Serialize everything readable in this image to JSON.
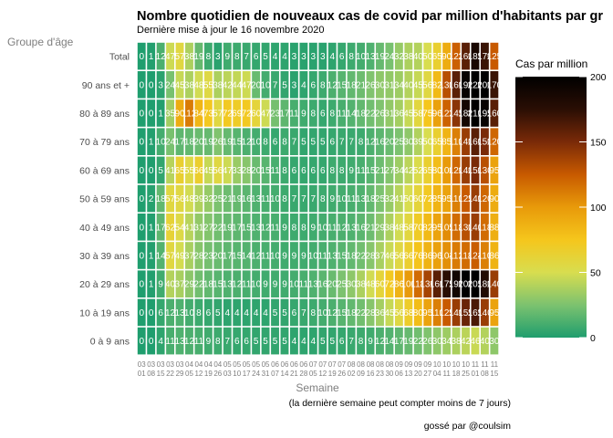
{
  "chart_data": {
    "type": "heatmap",
    "title": "Nombre quotidien de nouveaux cas de covid par million d'habitants par gr",
    "subtitle": "Dernière mise à jour le 16 novembre 2020",
    "xlabel": "Semaine",
    "ylabel": "Groupe d'âge",
    "note": "(la dernière semaine peut compter moins de 7 jours)",
    "credit": "gossé par @coulsim",
    "legend": {
      "title": "Cas par million",
      "ticks": [
        0,
        50,
        100,
        150,
        200
      ],
      "range": [
        0,
        200
      ],
      "position": "right"
    },
    "colorscale": [
      "#1f9e6e",
      "#7cc26f",
      "#d8dd4f",
      "#f5c61c",
      "#e89a0a",
      "#c85a00",
      "#7a2a08",
      "#2a0e04",
      "#000000"
    ],
    "categories_y": [
      "Total",
      "90 ans et +",
      "80 à 89 ans",
      "70 à 79 ans",
      "60 à 69 ans",
      "50 à 59 ans",
      "40 à 49 ans",
      "30 à 39 ans",
      "20 à 29 ans",
      "10 à 19 ans",
      "0 à 9 ans"
    ],
    "categories_x": [
      "03-01",
      "03-08",
      "03-15",
      "03-22",
      "03-29",
      "04-05",
      "04-12",
      "04-19",
      "04-26",
      "05-03",
      "05-10",
      "05-17",
      "05-24",
      "05-31",
      "06-07",
      "06-14",
      "06-21",
      "06-28",
      "07-05",
      "07-12",
      "07-19",
      "07-26",
      "08-02",
      "08-09",
      "08-16",
      "08-23",
      "08-30",
      "09-06",
      "09-13",
      "09-20",
      "09-27",
      "10-04",
      "10-11",
      "10-18",
      "10-25",
      "11-01",
      "11-08",
      "11-15"
    ],
    "x_tick_top": [
      "03",
      "03",
      "03",
      "03",
      "03",
      "04",
      "04",
      "04",
      "04",
      "05",
      "05",
      "05",
      "05",
      "05",
      "06",
      "06",
      "06",
      "06",
      "07",
      "07",
      "07",
      "07",
      "08",
      "08",
      "08",
      "08",
      "08",
      "09",
      "09",
      "09",
      "09",
      "10",
      "10",
      "10",
      "10",
      "11",
      "11",
      "11"
    ],
    "x_tick_bottom": [
      "01",
      "08",
      "15",
      "22",
      "29",
      "05",
      "12",
      "19",
      "26",
      "03",
      "10",
      "17",
      "24",
      "31",
      "07",
      "14",
      "21",
      "28",
      "05",
      "12",
      "19",
      "26",
      "02",
      "09",
      "16",
      "23",
      "30",
      "06",
      "13",
      "20",
      "27",
      "04",
      "11",
      "18",
      "25",
      "01",
      "08",
      "15"
    ],
    "values": [
      [
        0,
        1,
        12,
        47,
        57,
        38,
        19,
        8,
        3,
        9,
        8,
        7,
        6,
        5,
        4,
        4,
        3,
        3,
        3,
        3,
        4,
        6,
        8,
        10,
        13,
        19,
        24,
        32,
        38,
        40,
        50,
        65,
        90,
        123,
        160,
        185,
        170,
        125
      ],
      [
        0,
        0,
        3,
        24,
        45,
        38,
        48,
        55,
        38,
        42,
        44,
        47,
        20,
        10,
        7,
        5,
        3,
        4,
        6,
        8,
        12,
        15,
        18,
        21,
        26,
        30,
        31,
        34,
        40,
        45,
        56,
        82,
        130,
        160,
        196,
        220,
        200,
        170
      ],
      [
        0,
        0,
        1,
        35,
        90,
        112,
        84,
        73,
        57,
        72,
        69,
        72,
        60,
        47,
        23,
        17,
        11,
        9,
        8,
        6,
        8,
        11,
        14,
        18,
        22,
        26,
        31,
        36,
        45,
        58,
        75,
        96,
        122,
        145,
        188,
        210,
        195,
        160
      ],
      [
        0,
        1,
        10,
        24,
        17,
        18,
        20,
        19,
        26,
        19,
        15,
        12,
        10,
        8,
        6,
        8,
        7,
        5,
        5,
        5,
        6,
        7,
        7,
        8,
        12,
        16,
        20,
        25,
        30,
        39,
        50,
        65,
        85,
        110,
        140,
        160,
        150,
        120
      ],
      [
        0,
        0,
        5,
        41,
        65,
        55,
        66,
        45,
        56,
        47,
        33,
        28,
        20,
        15,
        11,
        8,
        6,
        6,
        6,
        6,
        8,
        8,
        9,
        11,
        15,
        21,
        27,
        34,
        42,
        52,
        65,
        80,
        100,
        120,
        140,
        150,
        130,
        95
      ],
      [
        0,
        2,
        18,
        57,
        56,
        48,
        39,
        32,
        25,
        21,
        19,
        16,
        13,
        11,
        10,
        8,
        7,
        7,
        7,
        8,
        9,
        10,
        11,
        13,
        18,
        25,
        32,
        41,
        50,
        60,
        72,
        85,
        95,
        110,
        125,
        140,
        120,
        90
      ],
      [
        0,
        1,
        17,
        62,
        54,
        41,
        31,
        27,
        22,
        19,
        17,
        15,
        13,
        12,
        11,
        9,
        8,
        8,
        9,
        10,
        11,
        12,
        13,
        16,
        21,
        29,
        38,
        48,
        58,
        70,
        82,
        95,
        105,
        118,
        130,
        140,
        118,
        88
      ],
      [
        0,
        1,
        14,
        57,
        49,
        37,
        28,
        23,
        20,
        17,
        15,
        14,
        12,
        11,
        10,
        9,
        9,
        9,
        10,
        11,
        13,
        15,
        18,
        22,
        28,
        37,
        46,
        56,
        66,
        76,
        86,
        96,
        104,
        112,
        118,
        124,
        110,
        86
      ],
      [
        0,
        1,
        9,
        40,
        37,
        29,
        22,
        18,
        15,
        13,
        12,
        11,
        10,
        9,
        9,
        9,
        10,
        11,
        13,
        16,
        20,
        25,
        30,
        38,
        48,
        60,
        72,
        86,
        100,
        118,
        136,
        160,
        175,
        190,
        200,
        205,
        180,
        140
      ],
      [
        0,
        0,
        6,
        12,
        13,
        10,
        8,
        6,
        5,
        4,
        4,
        4,
        4,
        4,
        5,
        5,
        6,
        7,
        8,
        10,
        12,
        15,
        18,
        22,
        28,
        36,
        45,
        56,
        68,
        80,
        95,
        110,
        125,
        140,
        155,
        165,
        140,
        95
      ],
      [
        0,
        0,
        4,
        11,
        13,
        12,
        11,
        9,
        8,
        7,
        6,
        6,
        5,
        5,
        5,
        5,
        4,
        4,
        4,
        5,
        5,
        6,
        7,
        8,
        9,
        12,
        14,
        17,
        19,
        22,
        26,
        30,
        34,
        38,
        42,
        46,
        40,
        30
      ]
    ]
  }
}
